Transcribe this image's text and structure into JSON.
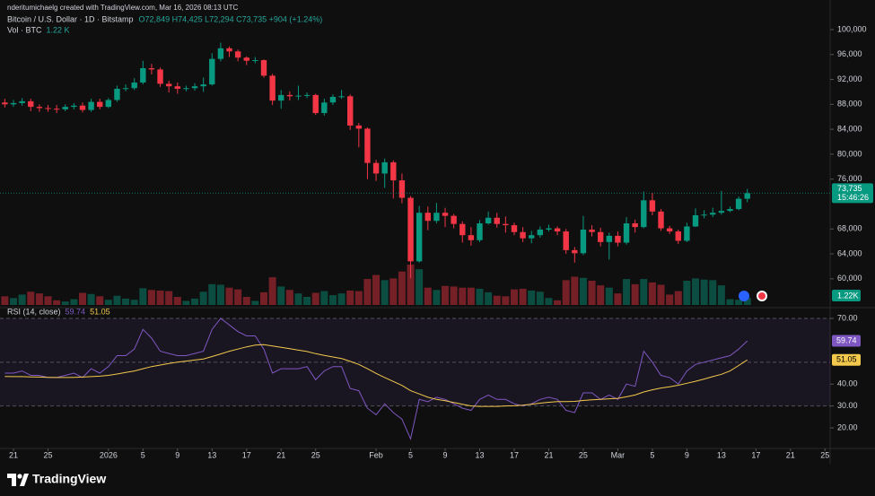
{
  "credit": "nderitumichaelg created with TradingView.com, Mar 16, 2026 08:13 UTC",
  "brand": "TradingView",
  "chart_data": [
    {
      "type": "candlestick",
      "title": "Bitcoin / U.S. Dollar · 1D · Bitstamp",
      "ohlc_legend": "O72,849 H74,425 L72,294 C73,735 +904 (+1.24%)",
      "up_color": "#089981",
      "down_color": "#f23645",
      "x": [
        "2025-12-20",
        "2025-12-21",
        "2025-12-22",
        "2025-12-23",
        "2025-12-24",
        "2025-12-25",
        "2025-12-26",
        "2025-12-27",
        "2025-12-28",
        "2025-12-29",
        "2025-12-30",
        "2025-12-31",
        "2026-01-01",
        "2026-01-02",
        "2026-01-03",
        "2026-01-04",
        "2026-01-05",
        "2026-01-06",
        "2026-01-07",
        "2026-01-08",
        "2026-01-09",
        "2026-01-10",
        "2026-01-11",
        "2026-01-12",
        "2026-01-13",
        "2026-01-14",
        "2026-01-15",
        "2026-01-16",
        "2026-01-17",
        "2026-01-18",
        "2026-01-19",
        "2026-01-20",
        "2026-01-21",
        "2026-01-22",
        "2026-01-23",
        "2026-01-24",
        "2026-01-25",
        "2026-01-26",
        "2026-01-27",
        "2026-01-28",
        "2026-01-29",
        "2026-01-30",
        "2026-01-31",
        "2026-02-01",
        "2026-02-02",
        "2026-02-03",
        "2026-02-04",
        "2026-02-05",
        "2026-02-06",
        "2026-02-07",
        "2026-02-08",
        "2026-02-09",
        "2026-02-10",
        "2026-02-11",
        "2026-02-12",
        "2026-02-13",
        "2026-02-14",
        "2026-02-15",
        "2026-02-16",
        "2026-02-17",
        "2026-02-18",
        "2026-02-19",
        "2026-02-20",
        "2026-02-21",
        "2026-02-22",
        "2026-02-23",
        "2026-02-24",
        "2026-02-25",
        "2026-02-26",
        "2026-02-27",
        "2026-02-28",
        "2026-03-01",
        "2026-03-02",
        "2026-03-03",
        "2026-03-04",
        "2026-03-05",
        "2026-03-06",
        "2026-03-07",
        "2026-03-08",
        "2026-03-09",
        "2026-03-10",
        "2026-03-11",
        "2026-03-12",
        "2026-03-13",
        "2026-03-14",
        "2026-03-15",
        "2026-03-16"
      ],
      "open": [
        88300,
        88000,
        88200,
        88500,
        87600,
        87400,
        87300,
        87200,
        87600,
        87800,
        87100,
        88400,
        87600,
        88700,
        90500,
        90600,
        91500,
        93800,
        93600,
        91300,
        90900,
        90500,
        90600,
        90900,
        91200,
        95300,
        97000,
        96500,
        95500,
        95000,
        95100,
        92600,
        88600,
        89500,
        89300,
        89400,
        89500,
        86600,
        88300,
        89200,
        89300,
        84600,
        84100,
        78600,
        76900,
        78700,
        75800,
        73000,
        62800,
        70600,
        69300,
        70600,
        70100,
        68800,
        67000,
        66200,
        68900,
        69800,
        68800,
        68600,
        67500,
        66500,
        67000,
        67900,
        68100,
        67600,
        64600,
        64100,
        67900,
        67500,
        65900,
        66900,
        65800,
        68900,
        68300,
        72600,
        70800,
        68100,
        67600,
        66100,
        68400,
        70200,
        70300,
        70600,
        70900,
        71200,
        72849
      ],
      "high": [
        88900,
        88700,
        89000,
        88900,
        88000,
        87900,
        87900,
        88000,
        88200,
        88300,
        88900,
        88900,
        89000,
        91000,
        91200,
        92200,
        95000,
        94500,
        93900,
        91800,
        91500,
        91000,
        91400,
        92300,
        96200,
        97900,
        97300,
        96800,
        95700,
        95600,
        95200,
        92900,
        90300,
        90100,
        91000,
        89900,
        89700,
        88900,
        89600,
        90300,
        89600,
        85000,
        84300,
        79100,
        79300,
        79000,
        76900,
        73300,
        71700,
        71600,
        72200,
        71400,
        70400,
        69200,
        68300,
        69400,
        70800,
        70600,
        70000,
        69000,
        68300,
        67700,
        68400,
        68700,
        68400,
        68000,
        65100,
        70100,
        68600,
        68200,
        67400,
        67600,
        69900,
        69500,
        74000,
        73800,
        71200,
        68500,
        67900,
        69000,
        71300,
        71000,
        71400,
        74100,
        71600,
        73200,
        74425
      ],
      "low": [
        87500,
        87600,
        87800,
        86900,
        86800,
        86800,
        86600,
        86900,
        87200,
        86700,
        86800,
        87200,
        87400,
        88400,
        90100,
        90300,
        91200,
        92800,
        90800,
        89900,
        89700,
        90100,
        90200,
        90000,
        91000,
        94900,
        95600,
        94900,
        94300,
        94600,
        92300,
        87900,
        87300,
        88600,
        88700,
        89000,
        86300,
        86200,
        87900,
        88900,
        83900,
        81100,
        76000,
        75700,
        74600,
        72900,
        72100,
        60100,
        62600,
        67800,
        68900,
        68300,
        68100,
        65800,
        65300,
        65900,
        68700,
        68200,
        67400,
        67000,
        65900,
        65700,
        66600,
        67600,
        67000,
        64000,
        62600,
        63800,
        66800,
        65200,
        63100,
        65200,
        65500,
        67400,
        68100,
        70200,
        67700,
        67200,
        65600,
        65900,
        68300,
        69700,
        69900,
        70300,
        70700,
        71000,
        72294
      ],
      "close": [
        88000,
        88200,
        88500,
        87600,
        87400,
        87300,
        87200,
        87600,
        87800,
        87100,
        88400,
        87600,
        88700,
        90500,
        90600,
        91500,
        93800,
        93600,
        91300,
        90900,
        90500,
        90600,
        90900,
        91200,
        95300,
        97000,
        96500,
        95500,
        95000,
        95100,
        92600,
        88600,
        89500,
        89300,
        89400,
        89500,
        86600,
        88300,
        89200,
        89300,
        84600,
        84100,
        78600,
        76900,
        78700,
        75800,
        73000,
        62800,
        70600,
        69300,
        70600,
        70100,
        68800,
        67000,
        66200,
        68900,
        69800,
        68800,
        68600,
        67500,
        66500,
        67000,
        67900,
        68100,
        67600,
        64600,
        64100,
        67900,
        67500,
        65900,
        66900,
        65800,
        68900,
        68300,
        72600,
        70800,
        68100,
        67600,
        66100,
        68400,
        70200,
        70300,
        70600,
        70900,
        71200,
        72849,
        73735
      ],
      "volume": {
        "name": "Vol · BTC",
        "last_label": "1.22 K",
        "axis_label": "1.22K",
        "values": [
          1500,
          1200,
          1800,
          2300,
          2000,
          1500,
          800,
          600,
          1000,
          2100,
          1900,
          1500,
          900,
          1600,
          1100,
          900,
          2900,
          2600,
          2500,
          2400,
          1400,
          700,
          1100,
          2300,
          3600,
          3500,
          3000,
          2700,
          1400,
          700,
          2200,
          4800,
          3200,
          2600,
          2000,
          1400,
          2100,
          2400,
          1700,
          2000,
          2500,
          2400,
          4500,
          5200,
          4300,
          4600,
          5800,
          7000,
          6200,
          3000,
          2600,
          3300,
          3200,
          3000,
          3000,
          2800,
          2200,
          1600,
          1500,
          2700,
          2800,
          2500,
          2300,
          1200,
          800,
          4300,
          4900,
          4700,
          4200,
          3400,
          3000,
          2000,
          4500,
          3600,
          4500,
          3900,
          3500,
          1800,
          2400,
          4200,
          4600,
          4400,
          4300,
          3400,
          1000,
          900,
          1220
        ]
      },
      "ylim": [
        55800,
        101150
      ],
      "yticks": [
        {
          "value": 100000,
          "label": "100,000"
        },
        {
          "value": 96000,
          "label": "96,000"
        },
        {
          "value": 92000,
          "label": "92,000"
        },
        {
          "value": 88000,
          "label": "88,000"
        },
        {
          "value": 84000,
          "label": "84,000"
        },
        {
          "value": 80000,
          "label": "80,000"
        },
        {
          "value": 76000,
          "label": "76,000"
        },
        {
          "value": 68000,
          "label": "68,000"
        },
        {
          "value": 64000,
          "label": "64,000"
        },
        {
          "value": 60000,
          "label": "60,000"
        }
      ],
      "last_price": {
        "value": 73735,
        "label": "73,735"
      },
      "countdown": "15:46:26",
      "xticks": [
        {
          "value": "2025-12-21",
          "label": "21"
        },
        {
          "value": "2025-12-25",
          "label": "25"
        },
        {
          "value": "2026-01-01",
          "label": "2026"
        },
        {
          "value": "2026-01-05",
          "label": "5"
        },
        {
          "value": "2026-01-09",
          "label": "9"
        },
        {
          "value": "2026-01-13",
          "label": "13"
        },
        {
          "value": "2026-01-17",
          "label": "17"
        },
        {
          "value": "2026-01-21",
          "label": "21"
        },
        {
          "value": "2026-01-25",
          "label": "25"
        },
        {
          "value": "2026-02-01",
          "label": "Feb"
        },
        {
          "value": "2026-02-05",
          "label": "5"
        },
        {
          "value": "2026-02-09",
          "label": "9"
        },
        {
          "value": "2026-02-13",
          "label": "13"
        },
        {
          "value": "2026-02-17",
          "label": "17"
        },
        {
          "value": "2026-02-21",
          "label": "21"
        },
        {
          "value": "2026-02-25",
          "label": "25"
        },
        {
          "value": "2026-03-01",
          "label": "Mar"
        },
        {
          "value": "2026-03-05",
          "label": "5"
        },
        {
          "value": "2026-03-09",
          "label": "9"
        },
        {
          "value": "2026-03-13",
          "label": "13"
        },
        {
          "value": "2026-03-17",
          "label": "17"
        },
        {
          "value": "2026-03-21",
          "label": "21"
        },
        {
          "value": "2026-03-25",
          "label": "25"
        }
      ]
    },
    {
      "type": "line",
      "title": "RSI (14, close)",
      "series": [
        {
          "color": "#7e57c2",
          "last_label": "59.74",
          "values": [
            45,
            45,
            46,
            44,
            44,
            43,
            43,
            44,
            45,
            43,
            47,
            45,
            48,
            53,
            53,
            56,
            65,
            61,
            55,
            54,
            53,
            53,
            54,
            55,
            65,
            70,
            67,
            64,
            62,
            62,
            56,
            45,
            47,
            47,
            47,
            48,
            42,
            46,
            48,
            48,
            38,
            37,
            29,
            26,
            31,
            27,
            24,
            15,
            33,
            32,
            34,
            33,
            31,
            29,
            28,
            33,
            35,
            33,
            33,
            31,
            30,
            31,
            33,
            34,
            33,
            28,
            27,
            36,
            36,
            33,
            35,
            33,
            40,
            39,
            55,
            50,
            44,
            43,
            40,
            46,
            49,
            50,
            51,
            52,
            53,
            56,
            59.74
          ]
        },
        {
          "color": "#f2c94c",
          "last_label": "51.05",
          "values": [
            43.5,
            43.4,
            43.4,
            43.3,
            43.2,
            43.1,
            43,
            43,
            43.1,
            43.2,
            43.4,
            43.6,
            44,
            44.6,
            45.3,
            46,
            47,
            48,
            48.7,
            49.4,
            50,
            50.5,
            51,
            51.5,
            52.6,
            53.8,
            55,
            56,
            57,
            57.8,
            58,
            57.4,
            56.8,
            56.2,
            55.5,
            54.9,
            53.9,
            53.1,
            52.4,
            51.7,
            50.4,
            49,
            47,
            44.9,
            43,
            41.2,
            39.4,
            37,
            35.5,
            34,
            33,
            32.4,
            31.6,
            30.8,
            30,
            29.8,
            29.8,
            29.8,
            30,
            30.1,
            30.4,
            30.8,
            31.3,
            31.7,
            32,
            32,
            32.1,
            32.5,
            32.8,
            33,
            33.3,
            33.5,
            34.2,
            35,
            36.4,
            37.4,
            38.2,
            38.8,
            39.5,
            40.4,
            41.3,
            42.3,
            43.4,
            44.5,
            46,
            48.5,
            51.05
          ]
        }
      ],
      "ylim": [
        10.6,
        74.1
      ],
      "yticks": [
        {
          "value": 70,
          "label": "70.00"
        },
        {
          "value": 40,
          "label": "40.00"
        },
        {
          "value": 30,
          "label": "30.00"
        },
        {
          "value": 20,
          "label": "20.00"
        }
      ],
      "bands": [
        70,
        50,
        30
      ]
    }
  ]
}
